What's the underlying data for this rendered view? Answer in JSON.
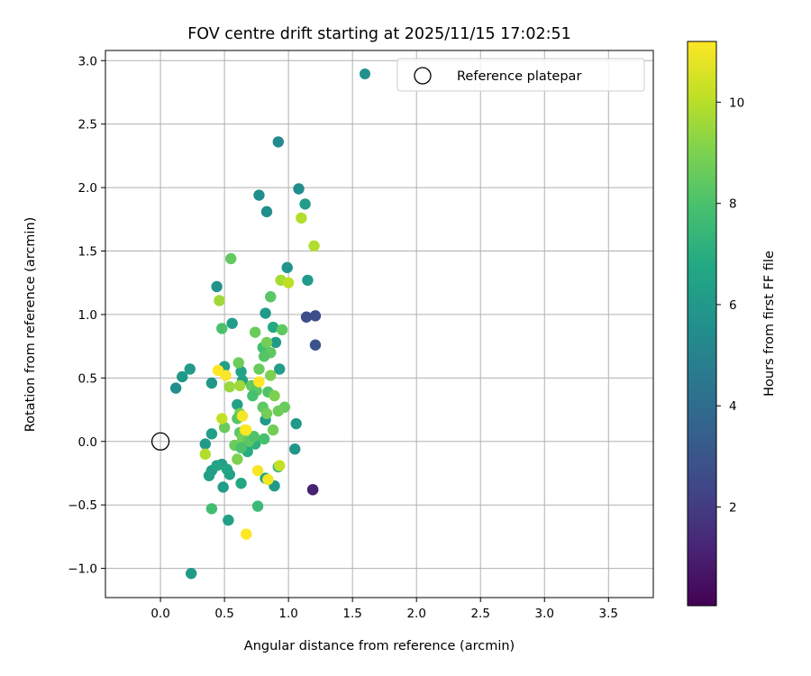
{
  "chart_data": {
    "type": "scatter",
    "title": "FOV centre drift starting at 2025/11/15 17:02:51",
    "xlabel": "Angular distance from reference (arcmin)",
    "ylabel": "Rotation from reference (arcmin)",
    "xlim": [
      -0.43,
      3.85
    ],
    "ylim": [
      -1.23,
      3.08
    ],
    "xticks": [
      0.0,
      0.5,
      1.0,
      1.5,
      2.0,
      2.5,
      3.0,
      3.5
    ],
    "yticks": [
      -1.0,
      -0.5,
      0.0,
      0.5,
      1.0,
      1.5,
      2.0,
      2.5,
      3.0
    ],
    "xtick_labels": [
      "0.0",
      "0.5",
      "1.0",
      "1.5",
      "2.0",
      "2.5",
      "3.0",
      "3.5"
    ],
    "ytick_labels": [
      "−1.0",
      "−0.5",
      "0.0",
      "0.5",
      "1.0",
      "1.5",
      "2.0",
      "2.5",
      "3.0"
    ],
    "grid": true,
    "legend": {
      "position": "top-right",
      "entries": [
        {
          "marker": "filled-circle",
          "label": ""
        },
        {
          "marker": "open-circle",
          "label": "Reference platepar"
        }
      ]
    },
    "colorbar": {
      "label": "Hours from first FF file",
      "min": 0.05,
      "max": 11.2,
      "ticks": [
        2,
        4,
        6,
        8,
        10
      ],
      "tick_labels": [
        "2",
        "4",
        "6",
        "8",
        "10"
      ],
      "colormap": "viridis"
    },
    "reference_point": {
      "x": 0.0,
      "y": 0.0,
      "label": "Reference platepar"
    },
    "series": [
      {
        "name": "FOV centre drift",
        "points": [
          {
            "x": 1.19,
            "y": -0.38,
            "h": 0.4
          },
          {
            "x": 1.19,
            "y": -0.38,
            "h": 1.1
          },
          {
            "x": 1.14,
            "y": 0.98,
            "h": 2.6
          },
          {
            "x": 1.21,
            "y": 0.99,
            "h": 2.7
          },
          {
            "x": 1.21,
            "y": 0.76,
            "h": 2.9
          },
          {
            "x": 0.92,
            "y": 2.36,
            "h": 5.3
          },
          {
            "x": 0.77,
            "y": 1.94,
            "h": 5.5
          },
          {
            "x": 0.83,
            "y": 1.81,
            "h": 5.5
          },
          {
            "x": 1.08,
            "y": 1.99,
            "h": 5.5
          },
          {
            "x": 1.13,
            "y": 1.87,
            "h": 6.2
          },
          {
            "x": 0.99,
            "y": 1.37,
            "h": 5.8
          },
          {
            "x": 1.15,
            "y": 1.27,
            "h": 6.1
          },
          {
            "x": 0.44,
            "y": 1.22,
            "h": 5.7
          },
          {
            "x": 0.82,
            "y": 1.01,
            "h": 6.0
          },
          {
            "x": 0.56,
            "y": 0.93,
            "h": 6.2
          },
          {
            "x": 0.88,
            "y": 0.9,
            "h": 6.8
          },
          {
            "x": 0.9,
            "y": 0.78,
            "h": 6.1
          },
          {
            "x": 0.12,
            "y": 0.42,
            "h": 5.6
          },
          {
            "x": 0.17,
            "y": 0.51,
            "h": 6.0
          },
          {
            "x": 0.23,
            "y": 0.57,
            "h": 6.1
          },
          {
            "x": 0.4,
            "y": 0.46,
            "h": 5.9
          },
          {
            "x": 0.5,
            "y": 0.59,
            "h": 6.3
          },
          {
            "x": 0.63,
            "y": 0.55,
            "h": 6.5
          },
          {
            "x": 0.93,
            "y": 0.57,
            "h": 6.2
          },
          {
            "x": 0.64,
            "y": 0.48,
            "h": 6.5
          },
          {
            "x": 0.6,
            "y": 0.29,
            "h": 6.4
          },
          {
            "x": 0.82,
            "y": 0.17,
            "h": 6.1
          },
          {
            "x": 1.06,
            "y": 0.14,
            "h": 6.0
          },
          {
            "x": 0.4,
            "y": 0.06,
            "h": 6.3
          },
          {
            "x": 0.35,
            "y": -0.02,
            "h": 6.1
          },
          {
            "x": 1.05,
            "y": -0.06,
            "h": 5.9
          },
          {
            "x": 0.48,
            "y": -0.18,
            "h": 6.3
          },
          {
            "x": 0.52,
            "y": -0.22,
            "h": 6.6
          },
          {
            "x": 0.4,
            "y": -0.23,
            "h": 6.2
          },
          {
            "x": 0.38,
            "y": -0.27,
            "h": 6.3
          },
          {
            "x": 0.44,
            "y": -0.19,
            "h": 6.6
          },
          {
            "x": 0.54,
            "y": -0.26,
            "h": 6.5
          },
          {
            "x": 0.63,
            "y": -0.33,
            "h": 6.7
          },
          {
            "x": 0.49,
            "y": -0.36,
            "h": 6.2
          },
          {
            "x": 0.89,
            "y": -0.35,
            "h": 6.0
          },
          {
            "x": 0.82,
            "y": -0.29,
            "h": 6.6
          },
          {
            "x": 0.53,
            "y": -0.62,
            "h": 6.3
          },
          {
            "x": 0.24,
            "y": -1.04,
            "h": 6.1
          },
          {
            "x": 0.68,
            "y": -0.08,
            "h": 6.9
          },
          {
            "x": 0.74,
            "y": -0.02,
            "h": 7.1
          },
          {
            "x": 0.92,
            "y": -0.2,
            "h": 7.5
          },
          {
            "x": 0.4,
            "y": -0.53,
            "h": 7.8
          },
          {
            "x": 0.76,
            "y": -0.51,
            "h": 7.6
          },
          {
            "x": 0.55,
            "y": 1.44,
            "h": 8.5
          },
          {
            "x": 0.86,
            "y": 1.14,
            "h": 8.3
          },
          {
            "x": 0.95,
            "y": 0.88,
            "h": 8.4
          },
          {
            "x": 0.48,
            "y": 0.89,
            "h": 8.0
          },
          {
            "x": 0.74,
            "y": 0.86,
            "h": 8.6
          },
          {
            "x": 0.8,
            "y": 0.74,
            "h": 7.8
          },
          {
            "x": 0.83,
            "y": 0.78,
            "h": 8.8
          },
          {
            "x": 0.86,
            "y": 0.7,
            "h": 8.4
          },
          {
            "x": 0.81,
            "y": 0.67,
            "h": 8.2
          },
          {
            "x": 0.61,
            "y": 0.62,
            "h": 8.7
          },
          {
            "x": 0.86,
            "y": 0.52,
            "h": 9.0
          },
          {
            "x": 0.77,
            "y": 0.57,
            "h": 8.6
          },
          {
            "x": 0.71,
            "y": 0.44,
            "h": 8.5
          },
          {
            "x": 0.75,
            "y": 0.4,
            "h": 8.3
          },
          {
            "x": 0.72,
            "y": 0.36,
            "h": 7.9
          },
          {
            "x": 0.84,
            "y": 0.39,
            "h": 8.1
          },
          {
            "x": 0.89,
            "y": 0.36,
            "h": 9.0
          },
          {
            "x": 0.97,
            "y": 0.27,
            "h": 8.6
          },
          {
            "x": 0.92,
            "y": 0.24,
            "h": 8.7
          },
          {
            "x": 0.8,
            "y": 0.27,
            "h": 8.4
          },
          {
            "x": 0.83,
            "y": 0.22,
            "h": 8.8
          },
          {
            "x": 0.62,
            "y": 0.22,
            "h": 8.8
          },
          {
            "x": 0.6,
            "y": 0.18,
            "h": 8.3
          },
          {
            "x": 0.5,
            "y": 0.11,
            "h": 8.6
          },
          {
            "x": 0.62,
            "y": 0.07,
            "h": 8.3
          },
          {
            "x": 0.64,
            "y": 0.03,
            "h": 8.8
          },
          {
            "x": 0.69,
            "y": 0.0,
            "h": 8.3
          },
          {
            "x": 0.58,
            "y": -0.03,
            "h": 8.6
          },
          {
            "x": 0.63,
            "y": -0.05,
            "h": 8.0
          },
          {
            "x": 0.73,
            "y": 0.04,
            "h": 8.1
          },
          {
            "x": 0.81,
            "y": 0.02,
            "h": 7.9
          },
          {
            "x": 0.88,
            "y": 0.09,
            "h": 8.8
          },
          {
            "x": 0.6,
            "y": -0.14,
            "h": 9.0
          },
          {
            "x": 0.54,
            "y": 0.43,
            "h": 9.5
          },
          {
            "x": 0.62,
            "y": 0.44,
            "h": 9.6
          },
          {
            "x": 0.46,
            "y": 1.11,
            "h": 9.6
          },
          {
            "x": 1.1,
            "y": 1.76,
            "h": 9.9
          },
          {
            "x": 1.2,
            "y": 1.54,
            "h": 9.9
          },
          {
            "x": 0.94,
            "y": 1.27,
            "h": 9.7
          },
          {
            "x": 1.0,
            "y": 1.25,
            "h": 10.1
          },
          {
            "x": 0.48,
            "y": 0.18,
            "h": 10.2
          },
          {
            "x": 0.66,
            "y": 0.09,
            "h": 10.6
          },
          {
            "x": 0.35,
            "y": -0.1,
            "h": 9.9
          },
          {
            "x": 0.93,
            "y": -0.19,
            "h": 10.2
          },
          {
            "x": 0.45,
            "y": 0.56,
            "h": 11.2
          },
          {
            "x": 0.51,
            "y": 0.52,
            "h": 11.1
          },
          {
            "x": 0.77,
            "y": 0.47,
            "h": 11.2
          },
          {
            "x": 0.64,
            "y": 0.2,
            "h": 11.0
          },
          {
            "x": 0.67,
            "y": 0.09,
            "h": 11.2
          },
          {
            "x": 0.76,
            "y": -0.23,
            "h": 11.1
          },
          {
            "x": 0.84,
            "y": -0.3,
            "h": 11.0
          },
          {
            "x": 0.67,
            "y": -0.73,
            "h": 11.2
          }
        ]
      }
    ]
  }
}
